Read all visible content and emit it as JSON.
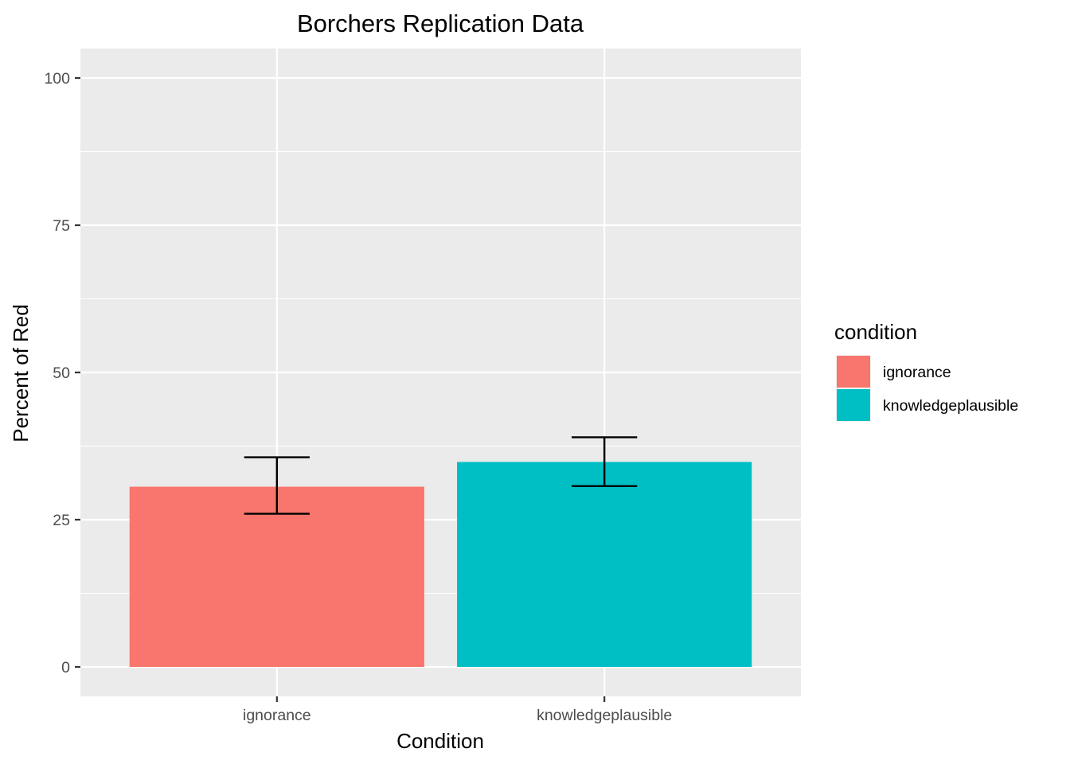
{
  "chart_data": {
    "type": "bar",
    "title": "Borchers Replication Data",
    "xlabel": "Condition",
    "ylabel": "Percent of Red",
    "categories": [
      "ignorance",
      "knowledgeplausible"
    ],
    "values": [
      30.6,
      34.8
    ],
    "error_bars": [
      {
        "low": 26.0,
        "high": 35.6
      },
      {
        "low": 30.7,
        "high": 39.0
      }
    ],
    "colors": [
      "#F8766D",
      "#00BFC4"
    ],
    "ylim": [
      -5,
      105
    ],
    "y_ticks": [
      0,
      25,
      50,
      75,
      100
    ],
    "y_tick_labels": [
      "0",
      "25",
      "50",
      "75",
      "100"
    ],
    "grid": true,
    "legend": {
      "title": "condition",
      "position": "right",
      "entries": [
        "ignorance",
        "knowledgeplausible"
      ]
    }
  }
}
